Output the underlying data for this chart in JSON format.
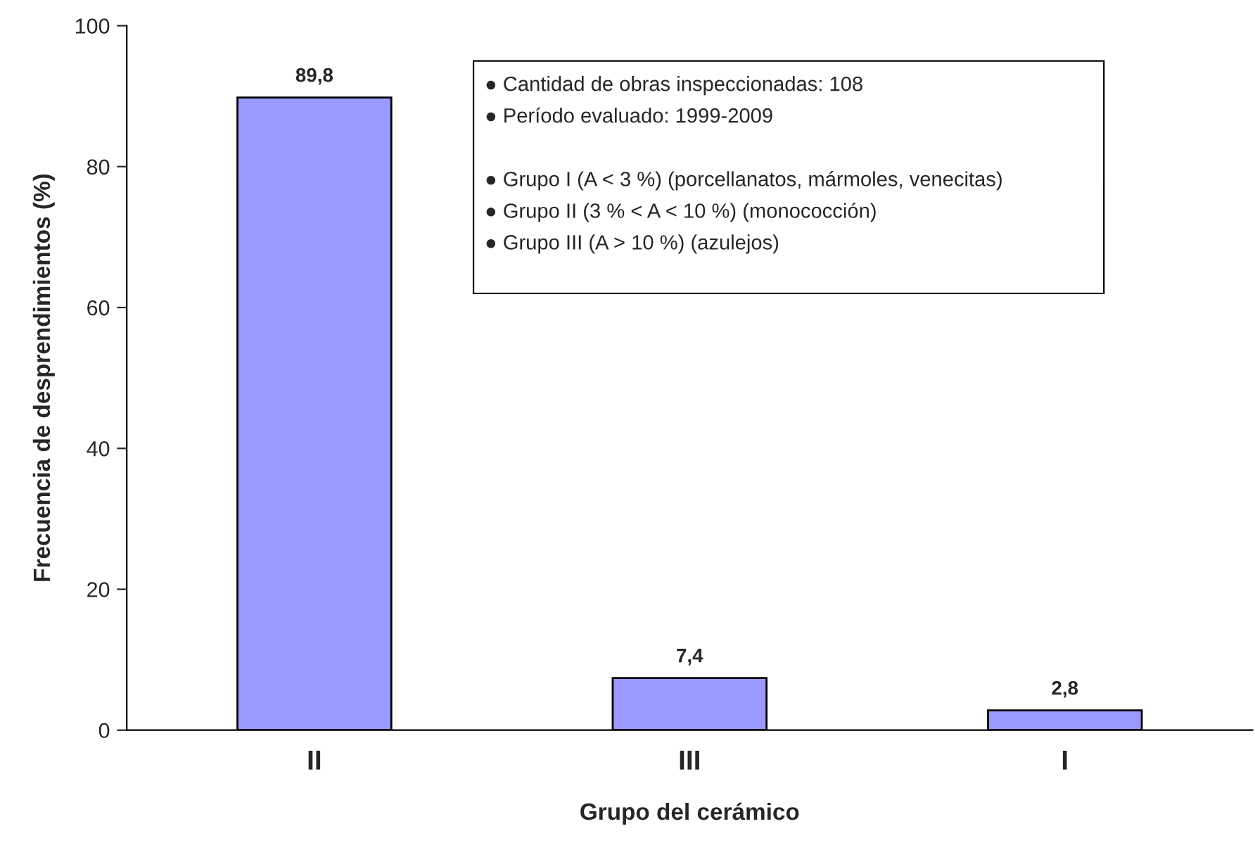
{
  "chart_data": {
    "type": "bar",
    "xlabel": "Grupo del cerámico",
    "ylabel": "Frecuencia de desprendimientos (%)",
    "categories": [
      "II",
      "III",
      "I"
    ],
    "values": [
      89.8,
      7.4,
      2.8
    ],
    "value_labels": [
      "89,8",
      "7,4",
      "2,8"
    ],
    "color": "#9999ff",
    "ylim": [
      0,
      100
    ],
    "yticks": [
      0,
      20,
      40,
      60,
      80,
      100
    ],
    "grid": false,
    "legend": false,
    "annotations": [
      "● Cantidad de obras inspeccionadas: 108",
      "● Período evaluado: 1999-2009",
      "● Grupo I (A < 3 %) (porcellanatos, mármoles, venecitas)",
      "● Grupo II (3 % < A < 10 %) (monococción)",
      "● Grupo III (A > 10 %) (azulejos)"
    ]
  }
}
